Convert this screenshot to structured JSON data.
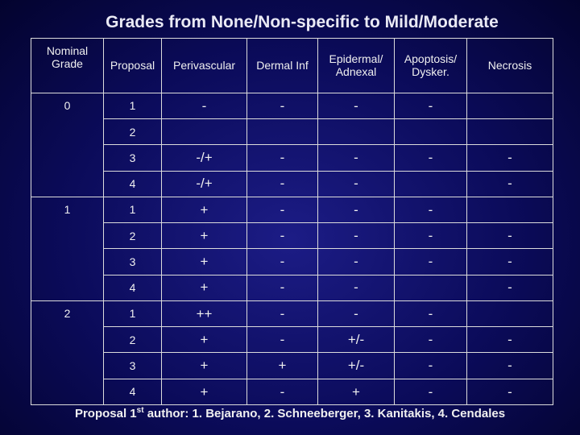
{
  "title": "Grades from None/Non-specific to Mild/Moderate",
  "headers": {
    "nominal_line1": "Nominal",
    "nominal_line2": "Grade",
    "proposal": "Proposal",
    "perivascular": "Perivascular",
    "dermal": "Dermal Inf",
    "epidermal_line1": "Epidermal/",
    "epidermal_line2": "Adnexal",
    "apoptosis_line1": "Apoptosis/",
    "apoptosis_line2": "Dysker.",
    "necrosis": "Necrosis"
  },
  "groups": [
    {
      "grade": "0",
      "rows": [
        {
          "proposal": "1",
          "perivascular": "-",
          "dermal": "-",
          "epidermal": "-",
          "apoptosis": "-",
          "necrosis": ""
        },
        {
          "proposal": "2",
          "perivascular": "",
          "dermal": "",
          "epidermal": "",
          "apoptosis": "",
          "necrosis": ""
        },
        {
          "proposal": "3",
          "perivascular": "-/+",
          "dermal": "-",
          "epidermal": "-",
          "apoptosis": "-",
          "necrosis": "-"
        },
        {
          "proposal": "4",
          "perivascular": "-/+",
          "dermal": "-",
          "epidermal": "-",
          "apoptosis": "",
          "necrosis": "-"
        }
      ]
    },
    {
      "grade": "1",
      "rows": [
        {
          "proposal": "1",
          "perivascular": "+",
          "dermal": "-",
          "epidermal": "-",
          "apoptosis": "-",
          "necrosis": ""
        },
        {
          "proposal": "2",
          "perivascular": "+",
          "dermal": "-",
          "epidermal": "-",
          "apoptosis": "-",
          "necrosis": "-"
        },
        {
          "proposal": "3",
          "perivascular": "+",
          "dermal": "-",
          "epidermal": "-",
          "apoptosis": "-",
          "necrosis": "-"
        },
        {
          "proposal": "4",
          "perivascular": "+",
          "dermal": "-",
          "epidermal": "-",
          "apoptosis": "",
          "necrosis": "-"
        }
      ]
    },
    {
      "grade": "2",
      "rows": [
        {
          "proposal": "1",
          "perivascular": "++",
          "dermal": "-",
          "epidermal": "-",
          "apoptosis": "-",
          "necrosis": ""
        },
        {
          "proposal": "2",
          "perivascular": "+",
          "dermal": "-",
          "epidermal": "+/-",
          "apoptosis": "-",
          "necrosis": "-"
        },
        {
          "proposal": "3",
          "perivascular": "+",
          "dermal": "+",
          "epidermal": "+/-",
          "apoptosis": "-",
          "necrosis": "-"
        },
        {
          "proposal": "4",
          "perivascular": "+",
          "dermal": "-",
          "epidermal": "+",
          "apoptosis": "-",
          "necrosis": "-"
        }
      ]
    }
  ],
  "footer": {
    "prefix": "Proposal 1",
    "superscript": "st",
    "text": " author: 1. Bejarano, 2. Schneeberger, 3. Kanitakis, 4. Cendales"
  }
}
